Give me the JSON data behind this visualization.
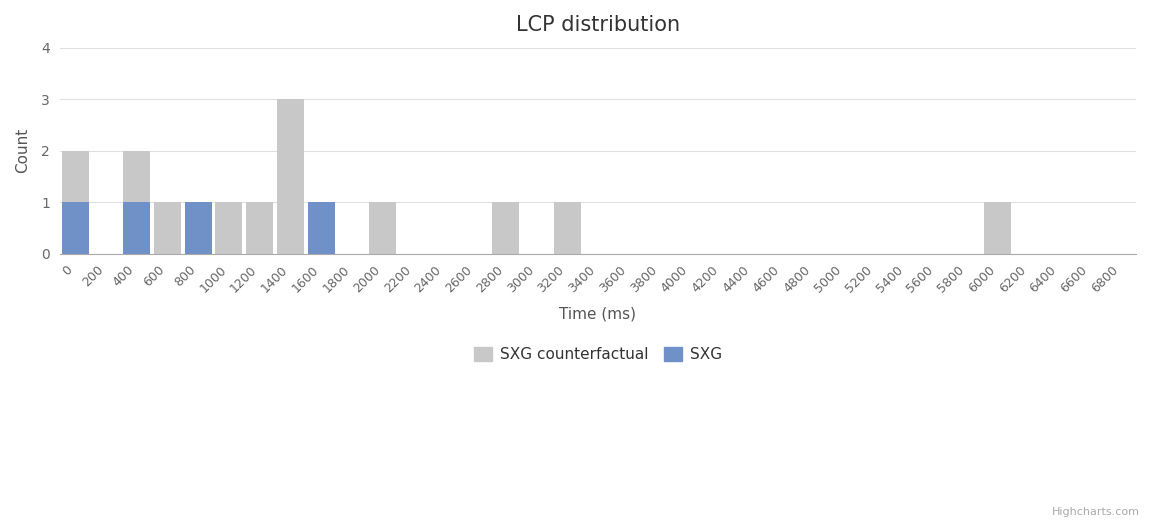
{
  "title": "LCP distribution",
  "xlabel": "Time (ms)",
  "ylabel": "Count",
  "ylim": [
    0,
    4
  ],
  "yticks": [
    0,
    1,
    2,
    3,
    4
  ],
  "xlim_left": -100,
  "xlim_right": 6900,
  "xtick_values": [
    0,
    200,
    400,
    600,
    800,
    1000,
    1200,
    1400,
    1600,
    1800,
    2000,
    2200,
    2400,
    2600,
    2800,
    3000,
    3200,
    3400,
    3600,
    3800,
    4000,
    4200,
    4400,
    4600,
    4800,
    5000,
    5200,
    5400,
    5600,
    5800,
    6000,
    6200,
    6400,
    6600,
    6800
  ],
  "bin_width": 200,
  "background_color": "#ffffff",
  "grid_color": "#e0e0e0",
  "title_fontsize": 15,
  "axis_fontsize": 11,
  "tick_fontsize": 9,
  "sxg_cf_color": "#c8c8c8",
  "sxg_color": "#7090c8",
  "sxg_cf_label": "SXG counterfactual",
  "sxg_label": "SXG",
  "sxg_cf_data": {
    "0": 2,
    "400": 2,
    "600": 1,
    "1000": 1,
    "1200": 1,
    "1400": 3,
    "1600": 1,
    "2000": 1,
    "2800": 1,
    "3200": 1,
    "6000": 1
  },
  "sxg_data": {
    "0": 1,
    "400": 1,
    "800": 1,
    "1600": 1
  }
}
